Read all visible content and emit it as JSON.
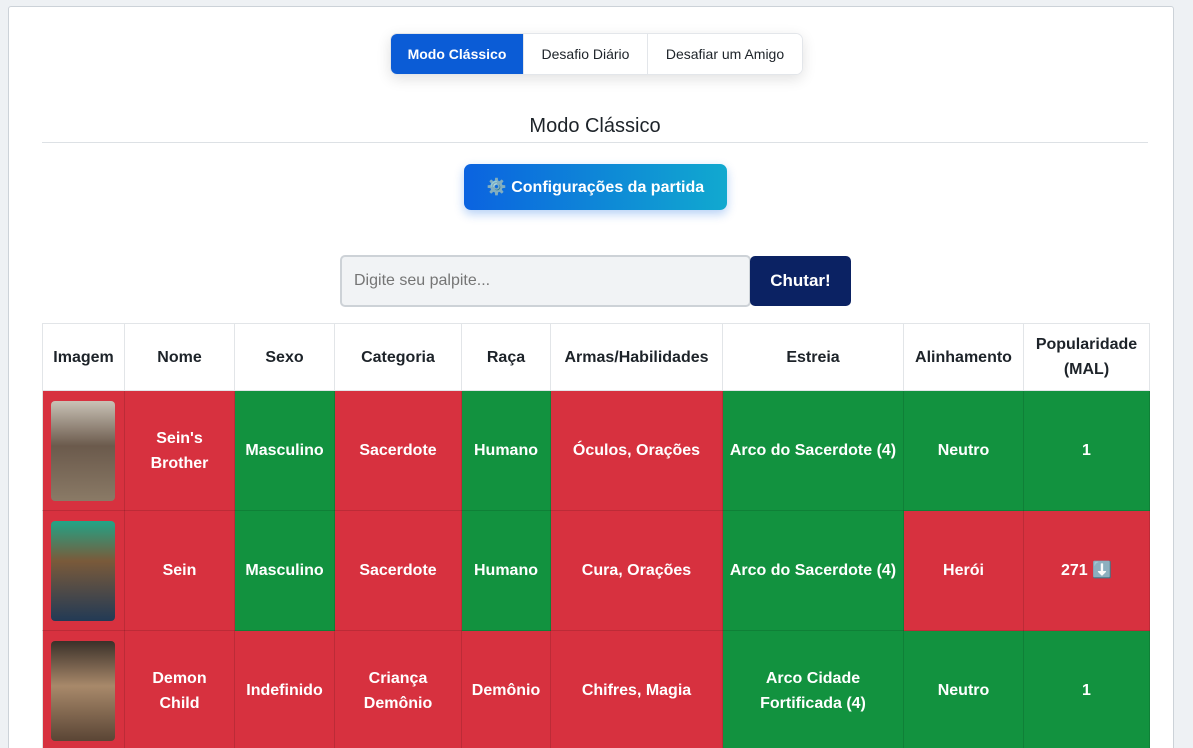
{
  "tabs": [
    "Modo Clássico",
    "Desafio Diário",
    "Desafiar um Amigo"
  ],
  "heading": "Modo Clássico",
  "settings_button": "⚙️ Configurações da partida",
  "guess": {
    "placeholder": "Digite seu palpite...",
    "button": "Chutar!"
  },
  "table": {
    "headers": [
      "Imagem",
      "Nome",
      "Sexo",
      "Categoria",
      "Raça",
      "Armas/Habilidades",
      "Estreia",
      "Alinhamento",
      "Popularidade (MAL)"
    ],
    "rows": [
      [
        "Sein's Brother",
        "Masculino",
        "Sacerdote",
        "Humano",
        "Óculos, Orações",
        "Arco do Sacerdote (4)",
        "Neutro",
        "1"
      ],
      [
        "Sein",
        "Masculino",
        "Sacerdote",
        "Humano",
        "Cura, Orações",
        "Arco do Sacerdote (4)",
        "Herói",
        "271 ⬇️"
      ],
      [
        "Demon Child",
        "Indefinido",
        "Criança Demônio",
        "Demônio",
        "Chifres, Magia",
        "Arco Cidade Fortificada (4)",
        "Neutro",
        "1"
      ]
    ]
  }
}
